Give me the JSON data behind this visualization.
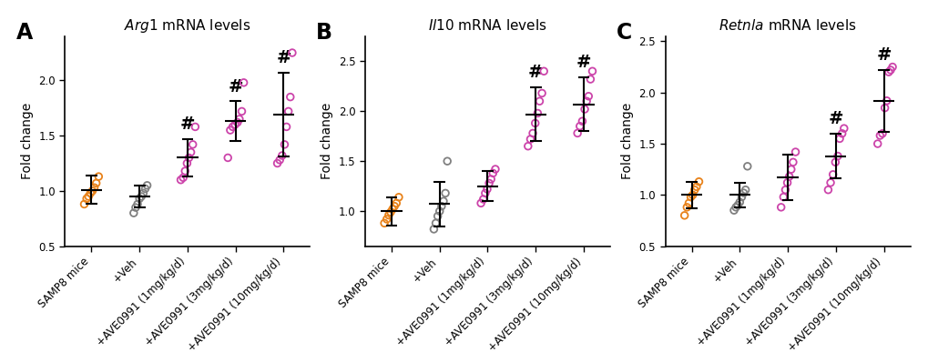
{
  "panels": [
    {
      "label": "A",
      "title_italic": "Arg1",
      "title_rest": " mRNA levels",
      "ylabel": "Fold change",
      "ylim": [
        0.5,
        2.4
      ],
      "yticks": [
        0.5,
        1.0,
        1.5,
        2.0
      ],
      "groups": [
        "SAMP8 mice",
        "+Veh",
        "+AVE0991 (1mg/kg/d)",
        "+AVE0991 (3mg/kg/d)",
        "+AVE0991 (10mg/kg/d)"
      ],
      "colors": [
        "#E8821A",
        "#808080",
        "#CC44AA",
        "#CC44AA",
        "#CC44AA"
      ],
      "means": [
        1.01,
        0.95,
        1.3,
        1.63,
        1.69
      ],
      "sds": [
        0.13,
        0.1,
        0.17,
        0.18,
        0.38
      ],
      "significance": [
        false,
        false,
        true,
        true,
        true
      ],
      "points": [
        [
          0.88,
          0.93,
          0.95,
          0.98,
          1.0,
          1.03,
          1.07,
          1.13
        ],
        [
          0.8,
          0.85,
          0.88,
          0.93,
          0.95,
          0.98,
          1.02,
          1.05
        ],
        [
          1.1,
          1.12,
          1.18,
          1.25,
          1.3,
          1.35,
          1.42,
          1.58
        ],
        [
          1.3,
          1.55,
          1.58,
          1.6,
          1.62,
          1.65,
          1.72,
          1.98
        ],
        [
          1.25,
          1.28,
          1.32,
          1.42,
          1.58,
          1.72,
          1.85,
          2.25
        ]
      ]
    },
    {
      "label": "B",
      "title_italic": "Il10",
      "title_rest": " mRNA levels",
      "ylabel": "Fold change",
      "ylim": [
        0.65,
        2.75
      ],
      "yticks": [
        1.0,
        1.5,
        2.0,
        2.5
      ],
      "groups": [
        "SAMP8 mice",
        "+Veh",
        "+AVE0991 (1mg/kg/d)",
        "+AVE0991 (3mg/kg/d)",
        "+AVE0991 (10mg/kg/d)"
      ],
      "colors": [
        "#E8821A",
        "#808080",
        "#CC44AA",
        "#CC44AA",
        "#CC44AA"
      ],
      "means": [
        1.0,
        1.07,
        1.25,
        1.97,
        2.07
      ],
      "sds": [
        0.14,
        0.22,
        0.15,
        0.27,
        0.27
      ],
      "significance": [
        false,
        false,
        false,
        true,
        true
      ],
      "points": [
        [
          0.88,
          0.92,
          0.96,
          0.99,
          1.02,
          1.05,
          1.08,
          1.14
        ],
        [
          0.82,
          0.88,
          0.95,
          1.0,
          1.05,
          1.1,
          1.18,
          1.5
        ],
        [
          1.08,
          1.12,
          1.18,
          1.22,
          1.28,
          1.32,
          1.38,
          1.42
        ],
        [
          1.65,
          1.72,
          1.78,
          1.88,
          1.98,
          2.1,
          2.18,
          2.4
        ],
        [
          1.78,
          1.85,
          1.9,
          2.02,
          2.1,
          2.15,
          2.32,
          2.4
        ]
      ]
    },
    {
      "label": "C",
      "title_italic": "Retnla",
      "title_rest": " mRNA levels",
      "ylabel": "Fold change",
      "ylim": [
        0.5,
        2.55
      ],
      "yticks": [
        0.5,
        1.0,
        1.5,
        2.0,
        2.5
      ],
      "groups": [
        "SAMP8 mice",
        "+Veh",
        "+AVE0991 (1mg/kg/d)",
        "+AVE0991 (3mg/kg/d)",
        "+AVE0991 (10mg/kg/d)"
      ],
      "colors": [
        "#E8821A",
        "#808080",
        "#CC44AA",
        "#CC44AA",
        "#CC44AA"
      ],
      "means": [
        1.0,
        1.0,
        1.17,
        1.38,
        1.92
      ],
      "sds": [
        0.13,
        0.12,
        0.22,
        0.22,
        0.3
      ],
      "significance": [
        false,
        false,
        false,
        true,
        true
      ],
      "points": [
        [
          0.8,
          0.88,
          0.92,
          0.98,
          1.0,
          1.05,
          1.08,
          1.13
        ],
        [
          0.85,
          0.88,
          0.9,
          0.93,
          0.98,
          1.02,
          1.05,
          1.28
        ],
        [
          0.88,
          0.98,
          1.05,
          1.12,
          1.18,
          1.25,
          1.32,
          1.42
        ],
        [
          1.05,
          1.12,
          1.2,
          1.32,
          1.38,
          1.55,
          1.6,
          1.65
        ],
        [
          1.5,
          1.58,
          1.6,
          1.85,
          1.92,
          2.2,
          2.22,
          2.25
        ]
      ]
    }
  ],
  "marker_lw": 1.3,
  "error_bar_lw": 1.5,
  "tick_label_fontsize": 8.5,
  "axis_label_fontsize": 10,
  "title_fontsize": 11,
  "panel_label_fontsize": 17,
  "hash_fontsize": 14,
  "jitter_seeds": [
    [
      0,
      1,
      2,
      3,
      4,
      5,
      6,
      7
    ],
    [
      10,
      11,
      12,
      13,
      14,
      15,
      16,
      17
    ],
    [
      20,
      21,
      22,
      23,
      24,
      25,
      26,
      27
    ],
    [
      30,
      31,
      32,
      33,
      34,
      35,
      36,
      37
    ],
    [
      40,
      41,
      42,
      43,
      44,
      45,
      46,
      47
    ]
  ]
}
